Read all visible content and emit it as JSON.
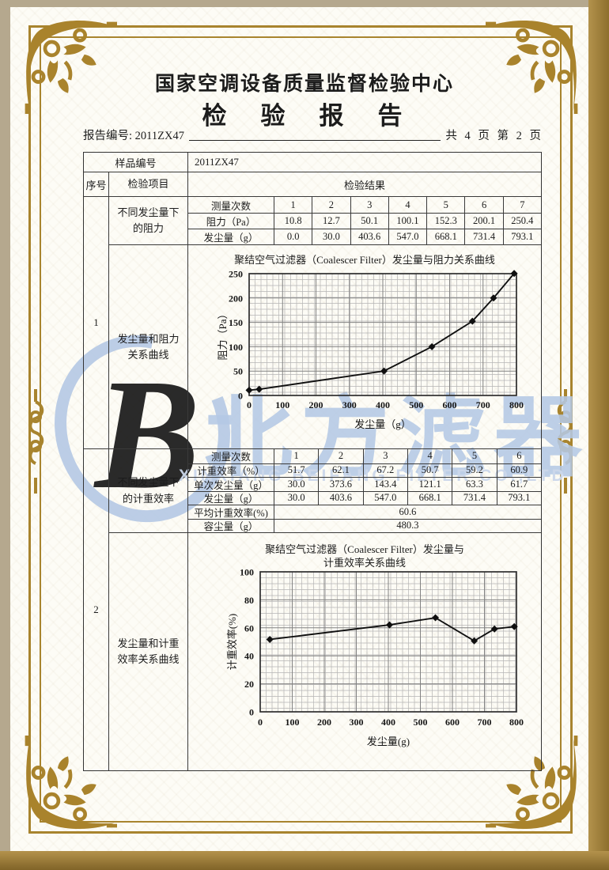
{
  "page": {
    "org_title": "国家空调设备质量监督检验中心",
    "report_title": "检　验　报　告",
    "report_no": "报告编号: 2011ZX47",
    "page_info": "共 4 页 第 2 页"
  },
  "colors": {
    "frame_gold": "#a8842e",
    "watermark_blue": "#b5c9e5",
    "paper": "#fdfcf6",
    "outer_background": "#b5a88e"
  },
  "sample_row": {
    "label": "样品编号",
    "value": "2011ZX47"
  },
  "header_row": {
    "seq": "序号",
    "item": "检验项目",
    "result": "检验结果"
  },
  "section1": {
    "seq": "1",
    "item_a": "不同发尘量下的阻力",
    "item_b": "发尘量和阻力关系曲线",
    "rows": [
      {
        "label": "测量次数",
        "values": [
          "1",
          "2",
          "3",
          "4",
          "5",
          "6",
          "7"
        ]
      },
      {
        "label": "阻力（Pa）",
        "values": [
          "10.8",
          "12.7",
          "50.1",
          "100.1",
          "152.3",
          "200.1",
          "250.4"
        ]
      },
      {
        "label": "发尘量（g）",
        "values": [
          "0.0",
          "30.0",
          "403.6",
          "547.0",
          "668.1",
          "731.4",
          "793.1"
        ]
      }
    ]
  },
  "section2": {
    "seq": "2",
    "item_a": "不同发尘量下的计重效率",
    "item_b": "发尘量和计重效率关系曲线",
    "rows": [
      {
        "label": "测量次数",
        "values": [
          "1",
          "2",
          "3",
          "4",
          "5",
          "6"
        ]
      },
      {
        "label": "计重效率（%）",
        "values": [
          "51.7",
          "62.1",
          "67.2",
          "50.7",
          "59.2",
          "60.9"
        ]
      },
      {
        "label": "单次发尘量（g）",
        "values": [
          "30.0",
          "373.6",
          "143.4",
          "121.1",
          "63.3",
          "61.7"
        ]
      },
      {
        "label": "发尘量（g）",
        "values": [
          "30.0",
          "403.6",
          "547.0",
          "668.1",
          "731.4",
          "793.1"
        ]
      }
    ],
    "summary": [
      {
        "label": "平均计重效率(%)",
        "value": "60.6"
      },
      {
        "label": "容尘量（g）",
        "value": "480.3"
      }
    ]
  },
  "watermark": {
    "logo_letter": "B",
    "text": "北方滤器",
    "subtext": "XINXIANG BEIFANG FILTER CO.,LTD"
  },
  "chart_data": [
    {
      "type": "line",
      "title": "聚结空气过滤器（Coalescer Filter）发尘量与阻力关系曲线",
      "xlabel": "发尘量（g）",
      "ylabel": "阻力（Pa）",
      "x": [
        0,
        30.0,
        403.6,
        547.0,
        668.1,
        731.4,
        793.1
      ],
      "y": [
        10.8,
        12.7,
        50.1,
        100.1,
        152.3,
        200.1,
        250.4
      ],
      "xlim": [
        0,
        800
      ],
      "ylim": [
        0,
        250
      ],
      "xticks": [
        0,
        100,
        200,
        300,
        400,
        500,
        600,
        700,
        800
      ],
      "yticks": [
        0,
        50,
        100,
        150,
        200,
        250
      ],
      "grid": true,
      "legend": "none",
      "marker": "diamond"
    },
    {
      "type": "line",
      "title": "聚结空气过滤器（Coalescer Filter）发尘量与",
      "title2": "计重效率关系曲线",
      "xlabel": "发尘量(g)",
      "ylabel": "计重效率(%)",
      "x": [
        30.0,
        403.6,
        547.0,
        668.1,
        731.4,
        793.1
      ],
      "y": [
        51.7,
        62.1,
        67.2,
        50.7,
        59.2,
        60.9
      ],
      "xlim": [
        0,
        800
      ],
      "ylim": [
        0,
        100
      ],
      "xticks": [
        0,
        100,
        200,
        300,
        400,
        500,
        600,
        700,
        800
      ],
      "yticks": [
        0,
        20,
        40,
        60,
        80,
        100
      ],
      "grid": true,
      "legend": "none",
      "marker": "diamond"
    }
  ]
}
